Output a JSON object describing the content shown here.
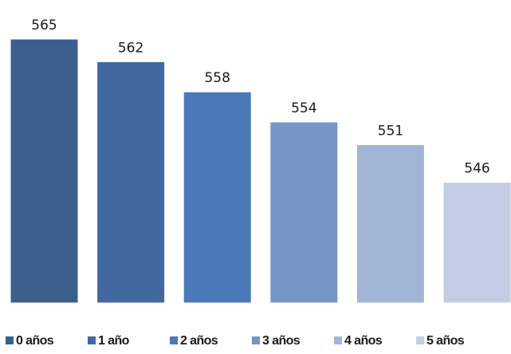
{
  "chart_data": {
    "type": "bar",
    "categories": [
      "0 años",
      "1 año",
      "2 años",
      "3 años",
      "4 años",
      "5 años"
    ],
    "values": [
      565,
      562,
      558,
      554,
      551,
      546
    ],
    "data_labels": [
      "565",
      "562",
      "558",
      "554",
      "551",
      "546"
    ],
    "title": "",
    "xlabel": "",
    "ylabel": "",
    "ylim": [
      530,
      565
    ],
    "grid": false,
    "legend": "bottom",
    "colors": [
      "#3b5e8c",
      "#4169a0",
      "#4a78b8",
      "#7596c6",
      "#a3b5d6",
      "#c3cde3"
    ]
  }
}
